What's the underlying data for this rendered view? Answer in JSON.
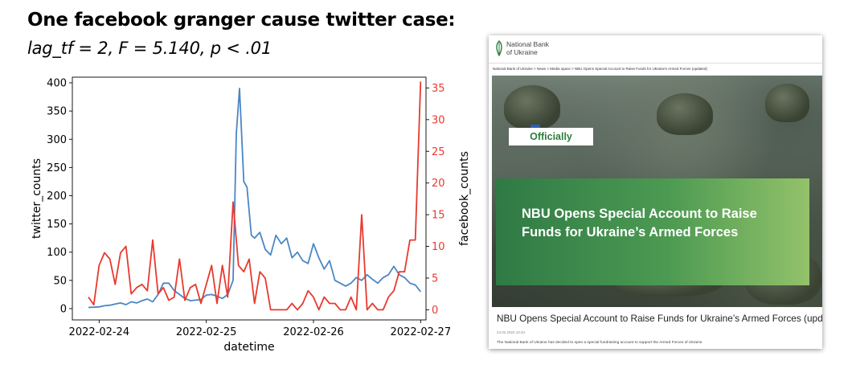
{
  "heading": "One facebook granger cause twitter case:",
  "subheading": "lag_tf = 2, F = 5.140, p < .01",
  "chart_data": {
    "type": "line",
    "xlabel": "datetime",
    "ylabel_left": "twitter_counts",
    "ylabel_right": "facebook_counts",
    "x_ticks": [
      "2022-02-24",
      "2022-02-25",
      "2022-02-26",
      "2022-02-27"
    ],
    "y_left_ticks": [
      0,
      50,
      100,
      150,
      200,
      250,
      300,
      350,
      400
    ],
    "y_right_ticks": [
      0,
      5,
      10,
      15,
      20,
      25,
      30,
      35
    ],
    "xlim_days": [
      -0.25,
      3.05
    ],
    "ylim_left": [
      -20,
      410
    ],
    "ylim_right": [
      -1.6,
      36.7
    ],
    "grid": false,
    "series": [
      {
        "name": "twitter_counts",
        "axis": "left",
        "color": "#4a86c5",
        "x_days": [
          -0.1,
          0.0,
          0.05,
          0.1,
          0.15,
          0.2,
          0.25,
          0.3,
          0.35,
          0.4,
          0.45,
          0.5,
          0.55,
          0.6,
          0.65,
          0.7,
          0.75,
          0.8,
          0.85,
          0.9,
          0.95,
          1.0,
          1.05,
          1.1,
          1.15,
          1.2,
          1.25,
          1.28,
          1.31,
          1.35,
          1.38,
          1.42,
          1.45,
          1.5,
          1.55,
          1.6,
          1.65,
          1.7,
          1.75,
          1.8,
          1.85,
          1.9,
          1.95,
          2.0,
          2.05,
          2.1,
          2.15,
          2.2,
          2.25,
          2.3,
          2.35,
          2.4,
          2.45,
          2.5,
          2.55,
          2.6,
          2.65,
          2.7,
          2.75,
          2.8,
          2.85,
          2.9,
          2.95,
          3.0
        ],
        "values": [
          2,
          3,
          5,
          6,
          8,
          10,
          7,
          12,
          10,
          14,
          17,
          12,
          25,
          45,
          45,
          32,
          25,
          18,
          14,
          15,
          16,
          24,
          25,
          22,
          18,
          25,
          50,
          310,
          390,
          225,
          215,
          130,
          125,
          135,
          105,
          95,
          130,
          115,
          125,
          90,
          100,
          85,
          80,
          115,
          90,
          70,
          85,
          50,
          45,
          40,
          45,
          55,
          50,
          60,
          52,
          45,
          55,
          60,
          75,
          60,
          55,
          45,
          42,
          30
        ]
      },
      {
        "name": "facebook_counts",
        "axis": "right",
        "color": "#e8392e",
        "x_days": [
          -0.1,
          -0.05,
          0.0,
          0.05,
          0.1,
          0.15,
          0.2,
          0.25,
          0.3,
          0.35,
          0.4,
          0.45,
          0.5,
          0.55,
          0.6,
          0.65,
          0.7,
          0.75,
          0.8,
          0.85,
          0.9,
          0.95,
          1.0,
          1.05,
          1.1,
          1.15,
          1.2,
          1.25,
          1.3,
          1.35,
          1.4,
          1.45,
          1.5,
          1.55,
          1.6,
          1.65,
          1.7,
          1.75,
          1.8,
          1.85,
          1.9,
          1.95,
          2.0,
          2.05,
          2.1,
          2.15,
          2.2,
          2.25,
          2.3,
          2.35,
          2.4,
          2.45,
          2.5,
          2.55,
          2.6,
          2.65,
          2.7,
          2.75,
          2.8,
          2.85,
          2.9,
          2.95,
          3.0
        ],
        "values": [
          2,
          0.8,
          7,
          9,
          8,
          4,
          9,
          10,
          2.5,
          3.5,
          4,
          3,
          11,
          2.5,
          3.5,
          1.5,
          2,
          8,
          1.5,
          3.5,
          4,
          1,
          4,
          7,
          1,
          7,
          2,
          17,
          7,
          6,
          8,
          1,
          6,
          5,
          0,
          0,
          0,
          0,
          1,
          0,
          1,
          3,
          2,
          0,
          2,
          1,
          1,
          0,
          0,
          2,
          0,
          15,
          0,
          1,
          0,
          0,
          2,
          3,
          6,
          6,
          11,
          11,
          36
        ]
      }
    ]
  },
  "card": {
    "logo_text": "National Bank\nof Ukraine",
    "breadcrumb": "National Bank of Ukraine  >  News  >  Media space  >  NBU Opens Special Account to Raise Funds for Ukraine's Armed Forces (updated)",
    "badge": "Officially",
    "banner_title": "NBU Opens Special Account to Raise Funds for Ukraine’s Armed Forces",
    "article_title": "NBU Opens Special Account to Raise Funds for Ukraine’s Armed Forces (upd",
    "article_date": "24.02.2022 10:34",
    "article_lead": "The National Bank of Ukraine has decided to open a special fundraising account to support the Armed Forces of Ukraine",
    "brand_color": "#2f7d3c"
  }
}
